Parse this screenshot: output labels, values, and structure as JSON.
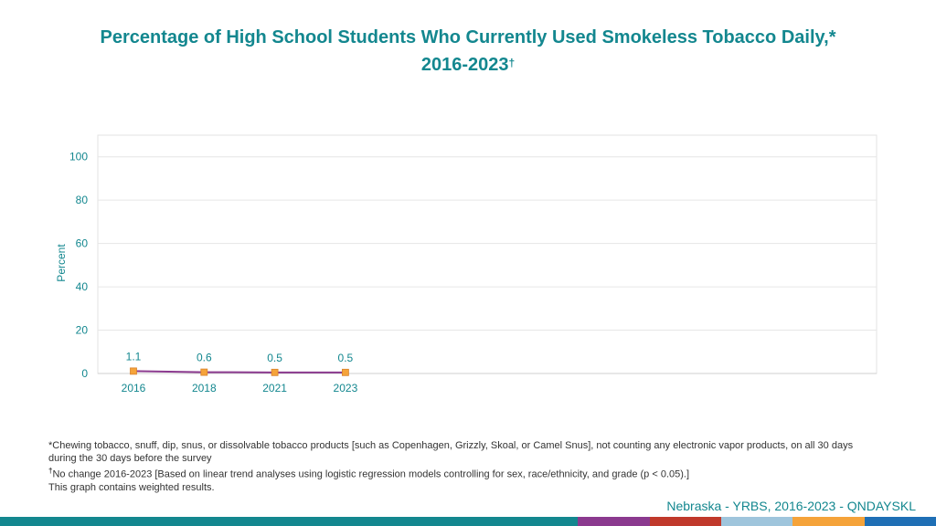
{
  "title": {
    "main": "Percentage of High School Students Who Currently Used Smokeless Tobacco Daily,*",
    "years": "2016-2023",
    "mark": "†"
  },
  "chart_data": {
    "type": "line",
    "title": "Percentage of High School Students Who Currently Used Smokeless Tobacco Daily,* 2016-2023†",
    "ylabel": "Percent",
    "xlabel": "",
    "categories": [
      "2016",
      "2018",
      "2021",
      "2023"
    ],
    "series": [
      {
        "values": [
          1.1,
          0.6,
          0.5,
          0.5
        ],
        "data_labels": [
          "1.1",
          "0.6",
          "0.5",
          "0.5"
        ],
        "color": "#8b3a8f",
        "marker_color": "#f5a33a"
      }
    ],
    "ylim": [
      0,
      110
    ],
    "yticks": [
      0,
      20,
      40,
      60,
      80,
      100
    ],
    "grid": true,
    "legend": "none"
  },
  "footnotes": {
    "chewing": "*Chewing tobacco, snuff, dip, snus, or dissolvable tobacco products [such as Copenhagen, Grizzly, Skoal, or Camel Snus], not counting any electronic vapor products, on all 30 days during the 30 days before the survey",
    "dagger_mark": "†",
    "trend": "No change 2016-2023 [Based on linear trend analyses using logistic regression models controlling for sex, race/ethnicity, and grade (p < 0.05).]",
    "weighted": "This graph contains weighted results."
  },
  "source": "Nebraska - YRBS, 2016-2023 - QNDAYSKL",
  "colors": {
    "title": "#13878f",
    "bottom_bar": [
      "#13878f",
      "#8b3a8f",
      "#c0392b",
      "#9fc5dc",
      "#f5a33a",
      "#1f6fb5"
    ]
  }
}
